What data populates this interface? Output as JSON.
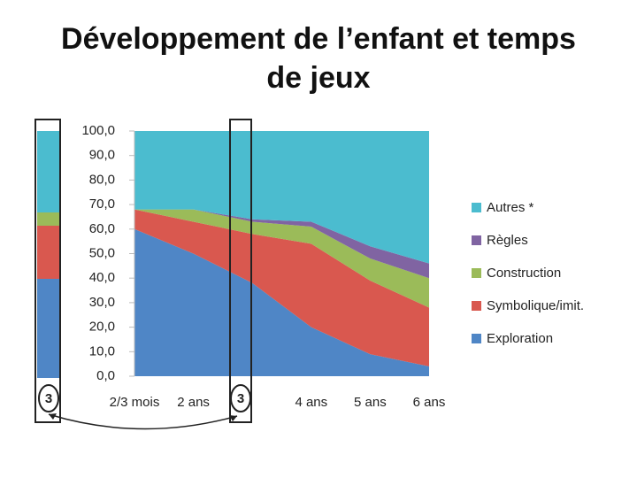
{
  "chart_data": {
    "type": "stacked-area",
    "title": "Développement de l’enfant et temps de jeux",
    "categories": [
      "2/3 mois",
      "2 ans",
      null,
      "4 ans",
      "5 ans",
      "6 ans"
    ],
    "annotation": "3",
    "series": [
      {
        "name": "Exploration",
        "color": "#4f86c6",
        "values": [
          60,
          50,
          38,
          20,
          9,
          4
        ]
      },
      {
        "name": "Symbolique/imit.",
        "color": "#d9584f",
        "values": [
          8,
          13,
          20,
          34,
          30,
          24
        ]
      },
      {
        "name": "Construction",
        "color": "#9bbb59",
        "values": [
          0,
          5,
          5,
          7,
          9,
          12
        ]
      },
      {
        "name": "Règles",
        "color": "#8064a2",
        "values": [
          0,
          0,
          1,
          2,
          5,
          6
        ]
      },
      {
        "name": "Autres *",
        "color": "#4bbccf",
        "values": [
          32,
          32,
          36,
          37,
          47,
          54
        ]
      }
    ],
    "ylim": [
      0,
      100
    ],
    "yticks": [
      {
        "value": 0,
        "label": "0,0"
      },
      {
        "value": 10,
        "label": "10,0"
      },
      {
        "value": 20,
        "label": "20,0"
      },
      {
        "value": 30,
        "label": "30,0"
      },
      {
        "value": 40,
        "label": "40,0"
      },
      {
        "value": 50,
        "label": "50,0"
      },
      {
        "value": 60,
        "label": "60,0"
      },
      {
        "value": 70,
        "label": "70,0"
      },
      {
        "value": 80,
        "label": "80,0"
      },
      {
        "value": 90,
        "label": "90,0"
      },
      {
        "value": 100,
        "label": "100,0"
      }
    ],
    "legend": "right"
  }
}
